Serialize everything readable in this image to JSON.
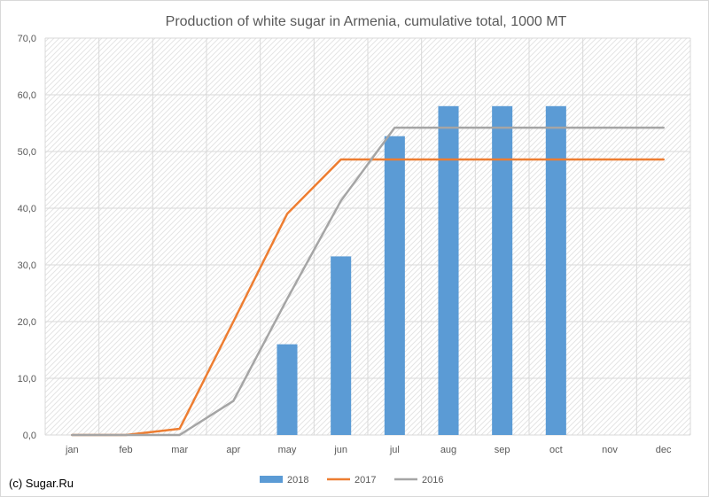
{
  "chart_data": {
    "type": "bar+line",
    "title": "Production of white sugar in Armenia, cumulative total, 1000 MT",
    "categories": [
      "jan",
      "feb",
      "mar",
      "apr",
      "may",
      "jun",
      "jul",
      "aug",
      "sep",
      "oct",
      "nov",
      "dec"
    ],
    "y_ticks": [
      "0,0",
      "10,0",
      "20,0",
      "30,0",
      "40,0",
      "50,0",
      "60,0",
      "70,0"
    ],
    "ylim": [
      0,
      70
    ],
    "grid": true,
    "legend_position": "bottom",
    "series": [
      {
        "name": "2018",
        "kind": "bar",
        "color": "#5b9bd5",
        "values": [
          null,
          null,
          null,
          null,
          16.0,
          31.5,
          52.7,
          58.0,
          58.0,
          58.0,
          null,
          null
        ]
      },
      {
        "name": "2017",
        "kind": "line",
        "color": "#ed7d31",
        "values": [
          0,
          0,
          1.1,
          20.0,
          39.0,
          48.6,
          48.6,
          48.6,
          48.6,
          48.6,
          48.6,
          48.6
        ]
      },
      {
        "name": "2016",
        "kind": "line",
        "color": "#a5a5a5",
        "values": [
          0,
          0,
          0,
          6.0,
          24.0,
          41.3,
          54.2,
          54.2,
          54.2,
          54.2,
          54.2,
          54.2
        ]
      }
    ]
  },
  "footer": {
    "copyright": "(c) Sugar.Ru"
  }
}
